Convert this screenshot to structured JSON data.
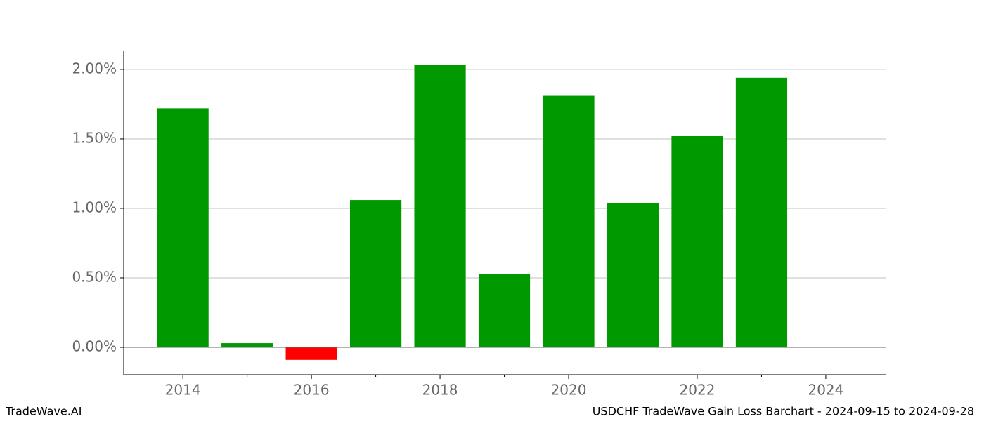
{
  "chart_data": {
    "type": "bar",
    "title": "USDCHF TradeWave Gain Loss Barchart - 2024-09-15 to 2024-09-28",
    "brand": "TradeWave.AI",
    "x": [
      2014,
      2015,
      2016,
      2017,
      2018,
      2019,
      2020,
      2021,
      2022,
      2023
    ],
    "values": [
      1.72,
      0.03,
      -0.09,
      1.06,
      2.03,
      0.53,
      1.81,
      1.04,
      1.52,
      1.94
    ],
    "color": "#009900",
    "negative_color": "#ff0000",
    "xlim": [
      2013.08,
      2024.93
    ],
    "xticks": [
      2014,
      2016,
      2018,
      2020,
      2022,
      2024
    ],
    "xticks_minor": [
      2015,
      2017,
      2019,
      2021,
      2023
    ],
    "ylim": [
      -0.197,
      2.136
    ],
    "yticks": [
      {
        "value": 0,
        "label": "0.00%"
      },
      {
        "value": 0.5,
        "label": "0.50%"
      },
      {
        "value": 1,
        "label": "1.00%"
      },
      {
        "value": 1.5,
        "label": "1.50%"
      },
      {
        "value": 2,
        "label": "2.00%"
      }
    ],
    "grid": true
  }
}
